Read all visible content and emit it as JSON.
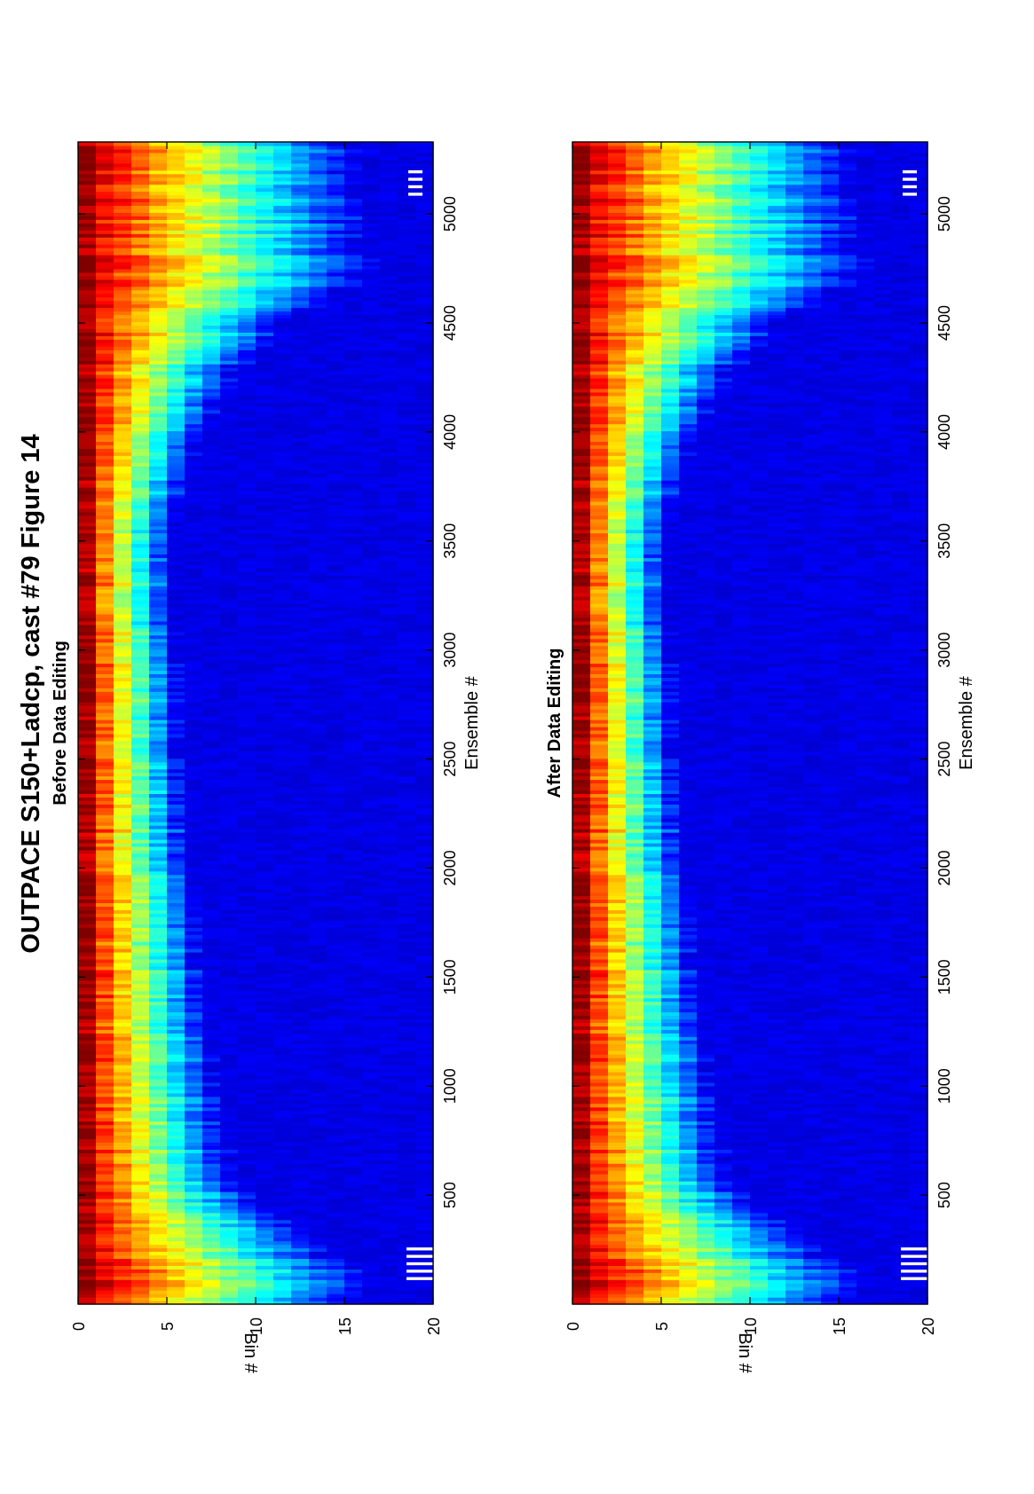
{
  "figure": {
    "title": "OUTPACE S150+Ladcp, cast #79  Figure 14"
  },
  "chart_data": [
    {
      "type": "heatmap",
      "subtitle": "Before Data Editing",
      "xlabel": "Ensemble #",
      "ylabel": "Bin #",
      "xlim": [
        0,
        5330
      ],
      "ylim": [
        0,
        20
      ],
      "xticks": [
        "500",
        "1000",
        "1500",
        "2000",
        "2500",
        "3000",
        "3500",
        "4000",
        "4500",
        "5000"
      ],
      "yticks": [
        "0",
        "5",
        "10",
        "15",
        "20"
      ],
      "colormap": "jet",
      "profile_samples": {
        "ensemble": [
          0,
          150,
          300,
          480,
          600,
          900,
          1500,
          2500,
          3500,
          4000,
          4300,
          4500,
          4700,
          5330
        ],
        "penetration_bins": [
          13.5,
          13.0,
          11.5,
          8.0,
          7.0,
          6.5,
          5.5,
          4.5,
          4.0,
          5.5,
          7.5,
          10.0,
          13.5,
          13.0
        ]
      },
      "gaps": [
        {
          "ensemble_range": [
            90,
            260
          ],
          "bins": [
            18.5,
            20
          ]
        },
        {
          "ensemble_range": [
            5080,
            5200
          ],
          "bins": [
            18.6,
            19.4
          ]
        }
      ]
    },
    {
      "type": "heatmap",
      "subtitle": "After Data Editing",
      "xlabel": "Ensemble #",
      "ylabel": "Bin #",
      "xlim": [
        0,
        5330
      ],
      "ylim": [
        0,
        20
      ],
      "xticks": [
        "500",
        "1000",
        "1500",
        "2000",
        "2500",
        "3000",
        "3500",
        "4000",
        "4500",
        "5000"
      ],
      "yticks": [
        "0",
        "5",
        "10",
        "15",
        "20"
      ],
      "colormap": "jet",
      "profile_samples": {
        "ensemble": [
          0,
          150,
          300,
          480,
          600,
          900,
          1500,
          2500,
          3500,
          4000,
          4300,
          4500,
          4700,
          5330
        ],
        "penetration_bins": [
          13.5,
          13.0,
          11.5,
          8.0,
          7.0,
          6.5,
          5.5,
          4.5,
          4.0,
          5.5,
          7.5,
          10.0,
          13.5,
          13.0
        ]
      },
      "gaps": [
        {
          "ensemble_range": [
            90,
            260
          ],
          "bins": [
            18.5,
            20
          ]
        },
        {
          "ensemble_range": [
            5080,
            5200
          ],
          "bins": [
            18.6,
            19.4
          ]
        }
      ]
    }
  ]
}
